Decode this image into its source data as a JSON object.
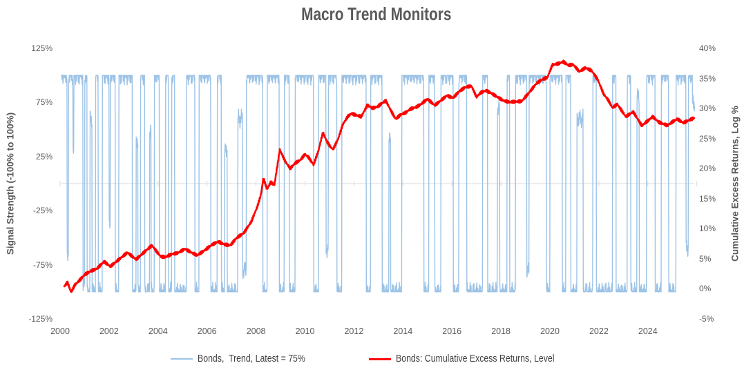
{
  "title": "Macro Trend Monitors",
  "colors": {
    "trend_blue": "#9DC3E6",
    "returns_red": "#FF0000",
    "axis_gray": "#D9D9D9",
    "tick_text": "#595959",
    "title_text": "#595959",
    "legend_text": "#3f3f3f"
  },
  "axes": {
    "left": {
      "title": "Signal Strength (-100% to 100%)",
      "tick_labels": [
        "125%",
        "75%",
        "25%",
        "-25%",
        "-75%",
        "-125%"
      ],
      "tick_values": [
        125,
        75,
        25,
        -25,
        -75,
        -125
      ],
      "range": [
        -125,
        125
      ]
    },
    "right": {
      "title": "Cumulative Excess Returns, Log %",
      "tick_labels": [
        "40%",
        "35%",
        "30%",
        "25%",
        "20%",
        "15%",
        "10%",
        "5%",
        "0%",
        "-5%"
      ],
      "tick_values": [
        40,
        35,
        30,
        25,
        20,
        15,
        10,
        5,
        0,
        -5
      ],
      "range": [
        -5,
        40
      ]
    },
    "x": {
      "tick_labels": [
        "2000",
        "2002",
        "2004",
        "2006",
        "2008",
        "2010",
        "2012",
        "2014",
        "2016",
        "2018",
        "2020",
        "2022",
        "2024"
      ],
      "tick_values": [
        2000,
        2002,
        2004,
        2006,
        2008,
        2010,
        2012,
        2014,
        2016,
        2018,
        2020,
        2022,
        2024
      ],
      "range": [
        2000,
        2026
      ]
    }
  },
  "legend": [
    {
      "label": "Bonds,  Trend, Latest = 75%",
      "color": "#9DC3E6"
    },
    {
      "label": "Bonds: Cumulative Excess Returns, Level",
      "color": "#FF0000"
    }
  ],
  "chart_data": {
    "type": "line",
    "title": "Macro Trend Monitors",
    "grid": "single horizontal category-axis line at left-axis 0% with small 2-year tick marks, labels shown at bottom",
    "legend_position": "bottom",
    "x_range": [
      2000,
      2026
    ],
    "left_ylim": [
      -125,
      125
    ],
    "right_ylim": [
      -5,
      40
    ],
    "series": [
      {
        "name": "Bonds,  Trend, Latest = 75%",
        "axis": "left",
        "unit": "%",
        "style": "high-frequency trend signal oscillating between +100% and -100%",
        "latest_value": 75,
        "color": "#9DC3E6",
        "segments_format": [
          "start_year",
          "end_year",
          "level_pct"
        ],
        "segments": [
          [
            2000.05,
            2000.28,
            100
          ],
          [
            2000.28,
            2000.34,
            -70
          ],
          [
            2000.34,
            2000.52,
            100
          ],
          [
            2000.52,
            2000.56,
            30
          ],
          [
            2000.56,
            2000.93,
            100
          ],
          [
            2000.93,
            2001.0,
            -95
          ],
          [
            2001.0,
            2001.1,
            100
          ],
          [
            2001.1,
            2001.22,
            -100
          ],
          [
            2001.22,
            2001.3,
            60
          ],
          [
            2001.3,
            2001.45,
            -100
          ],
          [
            2001.45,
            2001.55,
            100
          ],
          [
            2001.55,
            2001.72,
            -100
          ],
          [
            2001.72,
            2002.0,
            100
          ],
          [
            2002.0,
            2002.05,
            -40
          ],
          [
            2002.05,
            2002.25,
            100
          ],
          [
            2002.25,
            2002.4,
            -100
          ],
          [
            2002.4,
            2002.95,
            100
          ],
          [
            2002.95,
            2003.1,
            -100
          ],
          [
            2003.1,
            2003.18,
            40
          ],
          [
            2003.18,
            2003.28,
            -100
          ],
          [
            2003.28,
            2003.45,
            100
          ],
          [
            2003.45,
            2003.65,
            -100
          ],
          [
            2003.65,
            2003.72,
            50
          ],
          [
            2003.72,
            2003.85,
            -100
          ],
          [
            2003.85,
            2004.05,
            100
          ],
          [
            2004.05,
            2004.3,
            -100
          ],
          [
            2004.3,
            2004.42,
            100
          ],
          [
            2004.42,
            2004.55,
            -100
          ],
          [
            2004.55,
            2004.68,
            100
          ],
          [
            2004.68,
            2005.15,
            -100
          ],
          [
            2005.15,
            2005.5,
            100
          ],
          [
            2005.5,
            2005.67,
            -100
          ],
          [
            2005.67,
            2006.15,
            100
          ],
          [
            2006.15,
            2006.42,
            -100
          ],
          [
            2006.42,
            2006.58,
            100
          ],
          [
            2006.58,
            2006.72,
            -100
          ],
          [
            2006.72,
            2006.82,
            30
          ],
          [
            2006.82,
            2007.25,
            -100
          ],
          [
            2007.25,
            2007.45,
            60
          ],
          [
            2007.45,
            2007.6,
            -80
          ],
          [
            2007.6,
            2008.28,
            100
          ],
          [
            2008.28,
            2008.45,
            -100
          ],
          [
            2008.45,
            2008.95,
            100
          ],
          [
            2008.95,
            2009.15,
            -100
          ],
          [
            2009.15,
            2009.35,
            100
          ],
          [
            2009.35,
            2009.6,
            -100
          ],
          [
            2009.6,
            2010.35,
            100
          ],
          [
            2010.35,
            2010.55,
            -100
          ],
          [
            2010.55,
            2010.85,
            100
          ],
          [
            2010.85,
            2010.95,
            -60
          ],
          [
            2010.95,
            2011.3,
            100
          ],
          [
            2011.3,
            2011.5,
            -100
          ],
          [
            2011.5,
            2012.5,
            100
          ],
          [
            2012.5,
            2012.68,
            -100
          ],
          [
            2012.68,
            2013.15,
            100
          ],
          [
            2013.15,
            2013.42,
            -100
          ],
          [
            2013.42,
            2013.5,
            40
          ],
          [
            2013.5,
            2013.95,
            -100
          ],
          [
            2013.95,
            2014.85,
            100
          ],
          [
            2014.85,
            2015.05,
            -100
          ],
          [
            2015.05,
            2015.3,
            100
          ],
          [
            2015.3,
            2015.55,
            -100
          ],
          [
            2015.55,
            2016.05,
            100
          ],
          [
            2016.05,
            2016.28,
            -100
          ],
          [
            2016.28,
            2016.6,
            100
          ],
          [
            2016.6,
            2017.25,
            -100
          ],
          [
            2017.25,
            2017.45,
            100
          ],
          [
            2017.45,
            2017.85,
            -100
          ],
          [
            2017.85,
            2017.95,
            70
          ],
          [
            2017.95,
            2018.25,
            -100
          ],
          [
            2018.25,
            2018.35,
            100
          ],
          [
            2018.35,
            2018.6,
            -100
          ],
          [
            2018.6,
            2019.05,
            100
          ],
          [
            2019.05,
            2019.15,
            -80
          ],
          [
            2019.15,
            2019.85,
            100
          ],
          [
            2019.85,
            2020.0,
            -100
          ],
          [
            2020.0,
            2020.5,
            100
          ],
          [
            2020.5,
            2020.65,
            -100
          ],
          [
            2020.65,
            2020.85,
            100
          ],
          [
            2020.85,
            2021.1,
            -100
          ],
          [
            2021.1,
            2021.35,
            60
          ],
          [
            2021.35,
            2021.75,
            -100
          ],
          [
            2021.75,
            2021.9,
            100
          ],
          [
            2021.9,
            2022.55,
            -100
          ],
          [
            2022.55,
            2022.7,
            100
          ],
          [
            2022.7,
            2023.15,
            -100
          ],
          [
            2023.15,
            2023.3,
            100
          ],
          [
            2023.3,
            2023.55,
            -100
          ],
          [
            2023.55,
            2023.65,
            80
          ],
          [
            2023.65,
            2023.95,
            -100
          ],
          [
            2023.95,
            2024.3,
            100
          ],
          [
            2024.3,
            2024.55,
            -100
          ],
          [
            2024.55,
            2024.85,
            100
          ],
          [
            2024.85,
            2025.15,
            -100
          ],
          [
            2025.15,
            2025.55,
            100
          ],
          [
            2025.55,
            2025.65,
            -60
          ],
          [
            2025.65,
            2025.82,
            100
          ],
          [
            2025.82,
            2025.92,
            75
          ]
        ]
      },
      {
        "name": "Bonds: Cumulative Excess Returns, Level",
        "axis": "right",
        "unit": "log %",
        "latest_value": 28.5,
        "color": "#FF0000",
        "points_format": [
          "year",
          "cumulative_excess_return_log_pct"
        ],
        "points": [
          [
            2000.17,
            0.3
          ],
          [
            2000.3,
            1.0
          ],
          [
            2000.45,
            -0.7
          ],
          [
            2000.6,
            0.5
          ],
          [
            2000.8,
            1.3
          ],
          [
            2001.0,
            2.2
          ],
          [
            2001.25,
            2.8
          ],
          [
            2001.5,
            3.2
          ],
          [
            2001.8,
            4.4
          ],
          [
            2002.05,
            3.6
          ],
          [
            2002.4,
            4.8
          ],
          [
            2002.75,
            6.0
          ],
          [
            2003.1,
            4.9
          ],
          [
            2003.45,
            6.2
          ],
          [
            2003.75,
            7.3
          ],
          [
            2004.1,
            5.5
          ],
          [
            2004.3,
            5.4
          ],
          [
            2004.55,
            5.9
          ],
          [
            2004.8,
            6.1
          ],
          [
            2005.1,
            6.8
          ],
          [
            2005.35,
            6.2
          ],
          [
            2005.6,
            5.7
          ],
          [
            2005.9,
            6.5
          ],
          [
            2006.2,
            7.4
          ],
          [
            2006.45,
            7.9
          ],
          [
            2006.7,
            7.4
          ],
          [
            2006.95,
            7.2
          ],
          [
            2007.2,
            8.4
          ],
          [
            2007.5,
            9.2
          ],
          [
            2007.8,
            11.0
          ],
          [
            2008.05,
            13.5
          ],
          [
            2008.2,
            15.5
          ],
          [
            2008.3,
            18.3
          ],
          [
            2008.45,
            16.4
          ],
          [
            2008.6,
            17.6
          ],
          [
            2008.75,
            17.1
          ],
          [
            2008.97,
            23.0
          ],
          [
            2009.2,
            21.0
          ],
          [
            2009.4,
            19.9
          ],
          [
            2009.6,
            20.8
          ],
          [
            2009.8,
            21.3
          ],
          [
            2010.0,
            22.3
          ],
          [
            2010.15,
            21.8
          ],
          [
            2010.35,
            20.6
          ],
          [
            2010.55,
            23.0
          ],
          [
            2010.73,
            26.0
          ],
          [
            2010.9,
            24.5
          ],
          [
            2011.05,
            23.6
          ],
          [
            2011.15,
            23.3
          ],
          [
            2011.35,
            25.0
          ],
          [
            2011.55,
            27.5
          ],
          [
            2011.75,
            28.8
          ],
          [
            2011.9,
            29.3
          ],
          [
            2012.1,
            29.0
          ],
          [
            2012.3,
            28.8
          ],
          [
            2012.55,
            30.7
          ],
          [
            2012.75,
            30.2
          ],
          [
            2012.95,
            30.4
          ],
          [
            2013.15,
            31.0
          ],
          [
            2013.3,
            31.4
          ],
          [
            2013.5,
            29.8
          ],
          [
            2013.7,
            28.3
          ],
          [
            2013.9,
            29.0
          ],
          [
            2014.1,
            29.3
          ],
          [
            2014.3,
            29.9
          ],
          [
            2014.55,
            30.2
          ],
          [
            2014.75,
            30.7
          ],
          [
            2015.0,
            31.5
          ],
          [
            2015.3,
            30.4
          ],
          [
            2015.55,
            31.2
          ],
          [
            2015.8,
            32.0
          ],
          [
            2016.05,
            31.6
          ],
          [
            2016.3,
            32.7
          ],
          [
            2016.55,
            33.4
          ],
          [
            2016.8,
            33.6
          ],
          [
            2017.0,
            31.8
          ],
          [
            2017.2,
            32.6
          ],
          [
            2017.4,
            32.9
          ],
          [
            2017.6,
            32.5
          ],
          [
            2017.85,
            31.9
          ],
          [
            2018.1,
            31.3
          ],
          [
            2018.35,
            31.1
          ],
          [
            2018.6,
            31.2
          ],
          [
            2018.85,
            31.3
          ],
          [
            2019.1,
            32.5
          ],
          [
            2019.45,
            34.3
          ],
          [
            2019.7,
            35.0
          ],
          [
            2019.9,
            35.3
          ],
          [
            2020.1,
            37.4
          ],
          [
            2020.35,
            37.6
          ],
          [
            2020.55,
            37.9
          ],
          [
            2020.75,
            37.3
          ],
          [
            2020.95,
            37.4
          ],
          [
            2021.2,
            36.2
          ],
          [
            2021.45,
            36.8
          ],
          [
            2021.7,
            36.3
          ],
          [
            2021.95,
            34.8
          ],
          [
            2022.2,
            32.3
          ],
          [
            2022.4,
            31.2
          ],
          [
            2022.55,
            30.0
          ],
          [
            2022.75,
            30.6
          ],
          [
            2022.95,
            29.4
          ],
          [
            2023.1,
            28.5
          ],
          [
            2023.4,
            29.3
          ],
          [
            2023.6,
            28.0
          ],
          [
            2023.75,
            27.0
          ],
          [
            2024.0,
            27.8
          ],
          [
            2024.2,
            28.5
          ],
          [
            2024.45,
            27.6
          ],
          [
            2024.8,
            27.1
          ],
          [
            2025.0,
            27.7
          ],
          [
            2025.2,
            28.2
          ],
          [
            2025.45,
            27.6
          ],
          [
            2025.65,
            28.0
          ],
          [
            2025.9,
            28.5
          ]
        ]
      }
    ]
  }
}
